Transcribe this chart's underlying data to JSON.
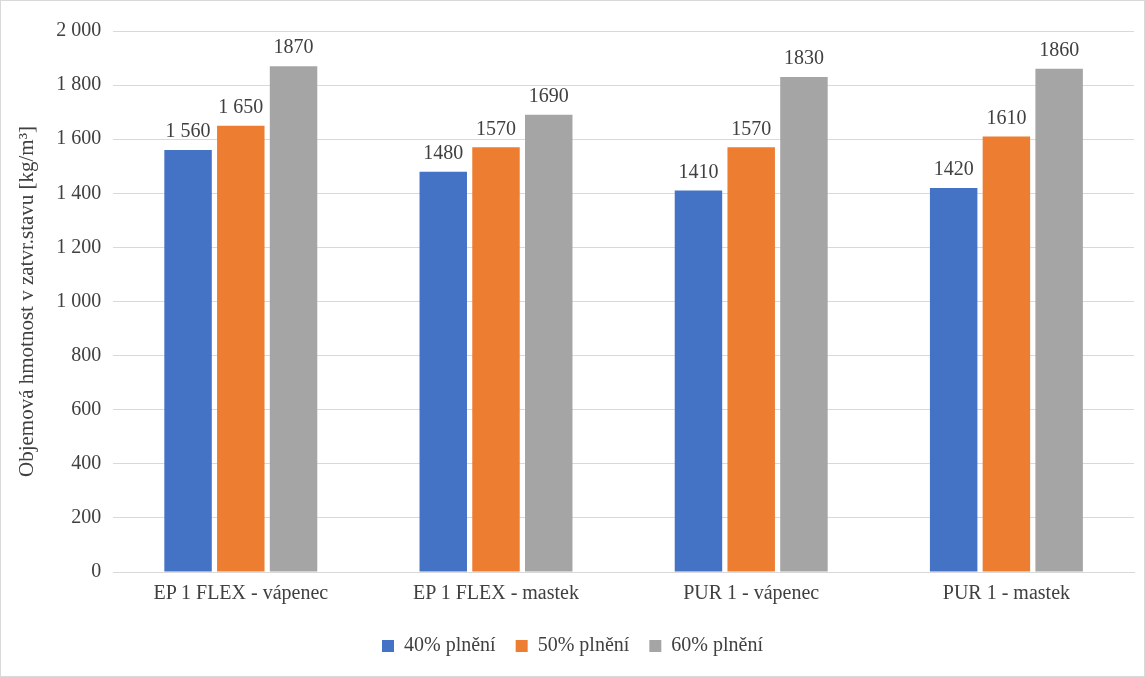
{
  "chart_data": {
    "type": "bar",
    "ylabel": "Objemová hmotnost v zatvr.stavu [kg/m³]",
    "categories": [
      "EP 1 FLEX - vápenec",
      "EP 1 FLEX - mastek",
      "PUR 1 - vápenec",
      "PUR 1 - mastek"
    ],
    "series": [
      {
        "name": "40% plnění",
        "color": "#4472c4",
        "values": [
          1560,
          1480,
          1410,
          1420
        ],
        "value_labels": [
          "1 560",
          "1480",
          "1410",
          "1420"
        ]
      },
      {
        "name": "50% plnění",
        "color": "#ed7d31",
        "values": [
          1650,
          1570,
          1570,
          1610
        ],
        "value_labels": [
          "1 650",
          "1570",
          "1570",
          "1610"
        ]
      },
      {
        "name": "60% plnění",
        "color": "#a5a5a5",
        "values": [
          1870,
          1690,
          1830,
          1860
        ],
        "value_labels": [
          "1870",
          "1690",
          "1830",
          "1860"
        ]
      }
    ],
    "ylim": [
      0,
      2000
    ],
    "yticks": [
      0,
      200,
      400,
      600,
      800,
      {
        "value": 1000,
        "label": "1 000"
      },
      {
        "value": 1200,
        "label": "1 200"
      },
      {
        "value": 1400,
        "label": "1 400"
      },
      {
        "value": 1600,
        "label": "1 600"
      },
      {
        "value": 1800,
        "label": "1 800"
      },
      {
        "value": 2000,
        "label": "2 000"
      }
    ],
    "grid": "y",
    "legend": "bottom"
  }
}
